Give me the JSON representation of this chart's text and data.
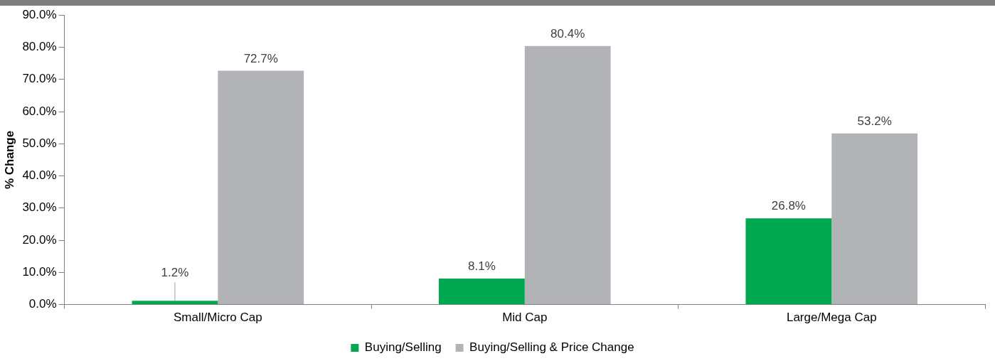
{
  "chart_data": {
    "type": "bar",
    "ylabel": "% Change",
    "categories": [
      "Small/Micro Cap",
      "Mid Cap",
      "Large/Mega Cap"
    ],
    "series": [
      {
        "name": "Buying/Selling",
        "color": "#00a94f",
        "values": [
          1.2,
          8.1,
          26.8
        ],
        "value_labels": [
          "1.2%",
          "8.1%",
          "26.8%"
        ]
      },
      {
        "name": "Buying/Selling & Price Change",
        "color": "#b2b3b6",
        "values": [
          72.7,
          80.4,
          53.2
        ],
        "value_labels": [
          "72.7%",
          "80.4%",
          "53.2%"
        ]
      }
    ],
    "ylim": [
      0,
      90
    ],
    "yticks": [
      {
        "value": 0,
        "label": "0.0%"
      },
      {
        "value": 10,
        "label": "10.0%"
      },
      {
        "value": 20,
        "label": "20.0%"
      },
      {
        "value": 30,
        "label": "30.0%"
      },
      {
        "value": 40,
        "label": "40.0%"
      },
      {
        "value": 50,
        "label": "50.0%"
      },
      {
        "value": 60,
        "label": "60.0%"
      },
      {
        "value": 70,
        "label": "70.0%"
      },
      {
        "value": 80,
        "label": "80.0%"
      },
      {
        "value": 90,
        "label": "90.0%"
      }
    ],
    "grid": false,
    "legend": "bottom"
  }
}
